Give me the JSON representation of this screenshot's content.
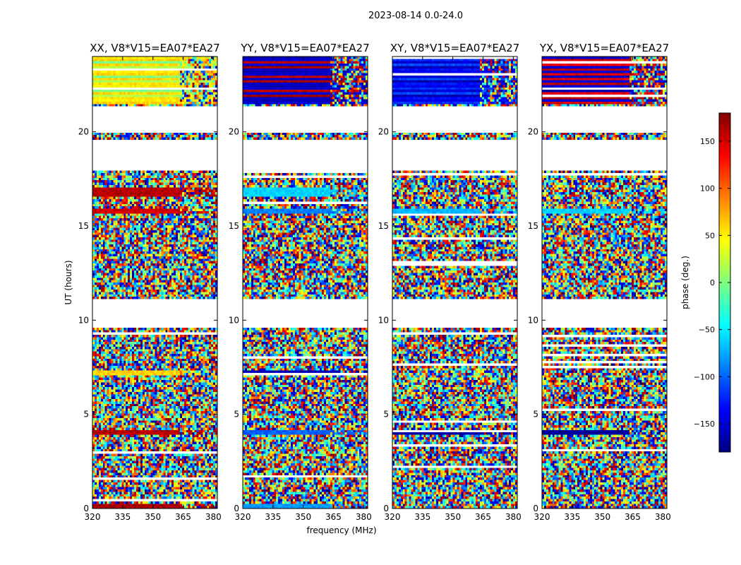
{
  "chart_data": {
    "type": "heatmap",
    "suptitle": "2023-08-14 0.0-24.0",
    "xlabel": "frequency (MHz)",
    "ylabel": "UT (hours)",
    "xlim": [
      320,
      382
    ],
    "ylim": [
      0,
      24
    ],
    "xticks": [
      320,
      335,
      350,
      365,
      380
    ],
    "yticks": [
      0,
      5,
      10,
      15,
      20
    ],
    "colorbar": {
      "label": "phase (deg.)",
      "range": [
        -180,
        180
      ],
      "ticks": [
        150,
        100,
        50,
        0,
        -50,
        -100,
        -150
      ],
      "tick_labels": [
        "150",
        "100",
        "50",
        "0",
        "−50",
        "−100",
        "−150"
      ],
      "colormap": [
        "#00007f",
        "#0000ff",
        "#007fff",
        "#00ffff",
        "#7fff7f",
        "#ffff00",
        "#ff7f00",
        "#ff0000",
        "#7f0000"
      ]
    },
    "empty_ut_ranges": [
      [
        9.6,
        11.1
      ],
      [
        17.9,
        19.6
      ],
      [
        20.0,
        21.4
      ]
    ],
    "panels": [
      {
        "title": "XX, V8*V15=EA07*EA27",
        "coherent_bands": [
          {
            "ut": [
              21.5,
              24.0
            ],
            "phase": [
              50,
              60,
              0,
              60,
              20,
              55
            ]
          },
          {
            "ut": [
              17.9,
              18.1
            ],
            "phase": [
              150
            ]
          },
          {
            "ut": [
              16.6,
              17.0
            ],
            "phase": [
              160
            ]
          },
          {
            "ut": [
              15.7,
              15.9
            ],
            "phase": [
              150
            ]
          },
          {
            "ut": [
              7.1,
              7.3
            ],
            "phase": [
              60
            ]
          },
          {
            "ut": [
              3.9,
              4.2
            ],
            "phase": [
              160
            ]
          },
          {
            "ut": [
              0.0,
              0.2
            ],
            "phase": [
              165
            ]
          }
        ]
      },
      {
        "title": "YY, V8*V15=EA07*EA27",
        "coherent_bands": [
          {
            "ut": [
              21.5,
              24.0
            ],
            "phase": [
              -160,
              -150,
              160,
              -150,
              170,
              -155
            ]
          },
          {
            "ut": [
              17.9,
              18.1
            ],
            "phase": [
              -80
            ]
          },
          {
            "ut": [
              16.6,
              17.0
            ],
            "phase": [
              -60
            ]
          },
          {
            "ut": [
              15.7,
              15.9
            ],
            "phase": [
              -90
            ]
          },
          {
            "ut": [
              7.1,
              7.3
            ],
            "phase": [
              -160
            ]
          },
          {
            "ut": [
              3.9,
              4.2
            ],
            "phase": [
              -100
            ]
          },
          {
            "ut": [
              0.0,
              0.3
            ],
            "phase": [
              -80
            ]
          }
        ]
      },
      {
        "title": "XY, V8*V15=EA07*EA27",
        "coherent_bands": [
          {
            "ut": [
              21.5,
              24.0
            ],
            "phase": [
              -140,
              -120,
              -150,
              -110,
              -160,
              -130
            ]
          },
          {
            "ut": [
              17.9,
              18.1
            ],
            "phase": [
              -50
            ]
          },
          {
            "ut": [
              15.7,
              15.9
            ],
            "phase": [
              -70
            ]
          },
          {
            "ut": [
              3.9,
              4.2
            ],
            "phase": [
              -165
            ]
          }
        ]
      },
      {
        "title": "YX, V8*V15=EA07*EA27",
        "coherent_bands": [
          {
            "ut": [
              21.5,
              24.0
            ],
            "phase": [
              -150,
              150,
              -160,
              140,
              -150,
              160
            ]
          },
          {
            "ut": [
              17.9,
              18.1
            ],
            "phase": [
              -70
            ]
          },
          {
            "ut": [
              15.7,
              15.9
            ],
            "phase": [
              -60
            ]
          },
          {
            "ut": [
              3.9,
              4.2
            ],
            "phase": [
              -170
            ]
          }
        ]
      }
    ]
  }
}
